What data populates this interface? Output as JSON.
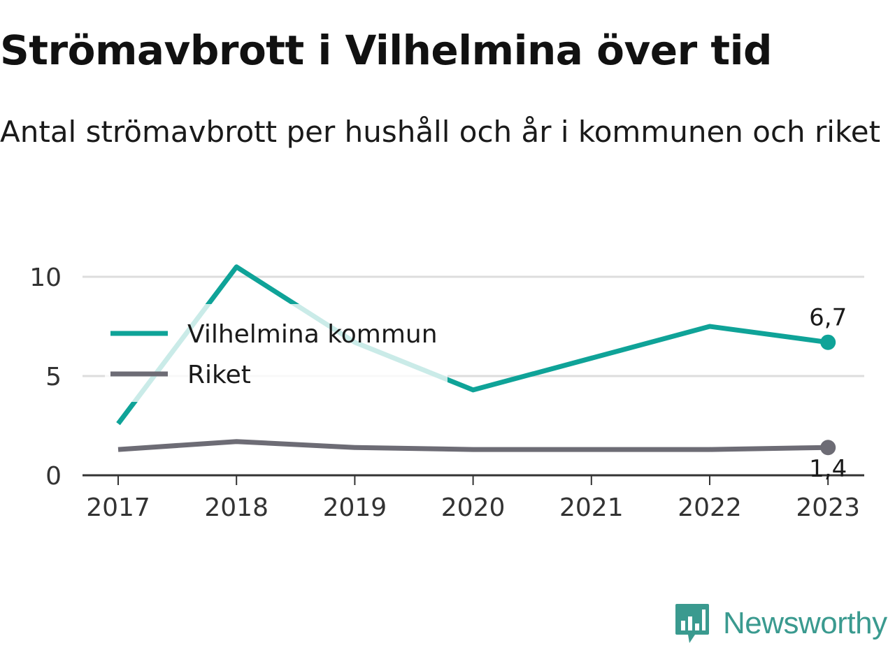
{
  "header": {
    "title": "Strömavbrott i Vilhelmina över tid",
    "subtitle": "Antal strömavbrott per hushåll och år i kommunen och riket"
  },
  "brand": {
    "name": "Newsworthy",
    "icon": "newsworthy-logo-icon",
    "color": "#3a9a8f"
  },
  "chart_data": {
    "type": "line",
    "title": "Strömavbrott i Vilhelmina över tid",
    "subtitle": "Antal strömavbrott per hushåll och år i kommunen och riket",
    "xlabel": "",
    "ylabel": "",
    "x": [
      "2017",
      "2018",
      "2019",
      "2020",
      "2021",
      "2022",
      "2023"
    ],
    "ylim": [
      0,
      10.5
    ],
    "yticks": [
      0,
      5,
      10
    ],
    "ytick_labels": [
      "0",
      "5",
      "10"
    ],
    "grid": true,
    "legend_position": "top-left",
    "series": [
      {
        "name": "Vilhelmina kommun",
        "color": "#0fa398",
        "values": [
          2.6,
          10.5,
          6.7,
          4.3,
          5.9,
          7.5,
          6.7
        ],
        "end_label": "6,7"
      },
      {
        "name": "Riket",
        "color": "#6d6c75",
        "values": [
          1.3,
          1.7,
          1.4,
          1.3,
          1.3,
          1.3,
          1.4
        ],
        "end_label": "1,4"
      }
    ]
  }
}
